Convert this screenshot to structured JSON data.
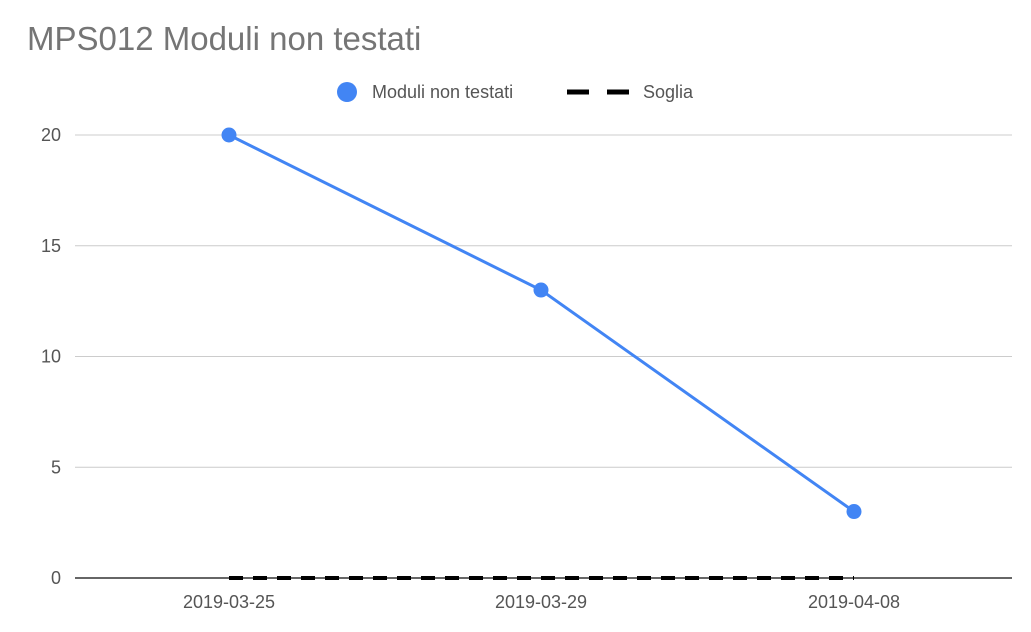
{
  "chart_data": {
    "type": "line",
    "title": "MPS012 Moduli non testati",
    "xlabel": "",
    "ylabel": "",
    "categories": [
      "2019-03-25",
      "2019-03-29",
      "2019-04-08"
    ],
    "series": [
      {
        "name": "Moduli non testati",
        "values": [
          20,
          13,
          3
        ],
        "color": "#4285f4",
        "style": "solid-with-markers"
      },
      {
        "name": "Soglia",
        "values": [
          0,
          0,
          0
        ],
        "color": "#000000",
        "style": "dashed"
      }
    ],
    "ylim": [
      0,
      20
    ],
    "yticks": [
      "0",
      "5",
      "10",
      "15",
      "20"
    ],
    "grid": true,
    "legend_position": "top-center"
  }
}
